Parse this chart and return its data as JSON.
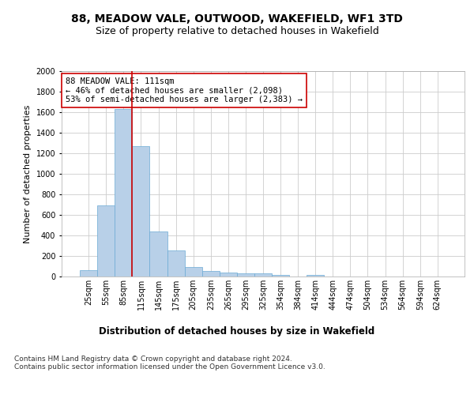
{
  "title": "88, MEADOW VALE, OUTWOOD, WAKEFIELD, WF1 3TD",
  "subtitle": "Size of property relative to detached houses in Wakefield",
  "xlabel": "Distribution of detached houses by size in Wakefield",
  "ylabel": "Number of detached properties",
  "categories": [
    "25sqm",
    "55sqm",
    "85sqm",
    "115sqm",
    "145sqm",
    "175sqm",
    "205sqm",
    "235sqm",
    "265sqm",
    "295sqm",
    "325sqm",
    "354sqm",
    "384sqm",
    "414sqm",
    "444sqm",
    "474sqm",
    "504sqm",
    "534sqm",
    "564sqm",
    "594sqm",
    "624sqm"
  ],
  "values": [
    65,
    695,
    1630,
    1270,
    435,
    255,
    90,
    55,
    40,
    28,
    28,
    15,
    0,
    18,
    0,
    0,
    0,
    0,
    0,
    0,
    0
  ],
  "bar_color": "#b8d0e8",
  "bar_edge_color": "#6aaad4",
  "vline_color": "#cc0000",
  "annotation_text": "88 MEADOW VALE: 111sqm\n← 46% of detached houses are smaller (2,098)\n53% of semi-detached houses are larger (2,383) →",
  "annotation_box_color": "#ffffff",
  "annotation_box_edge_color": "#cc0000",
  "ylim": [
    0,
    2000
  ],
  "yticks": [
    0,
    200,
    400,
    600,
    800,
    1000,
    1200,
    1400,
    1600,
    1800,
    2000
  ],
  "bg_color": "#ffffff",
  "grid_color": "#cccccc",
  "footnote": "Contains HM Land Registry data © Crown copyright and database right 2024.\nContains public sector information licensed under the Open Government Licence v3.0.",
  "title_fontsize": 10,
  "subtitle_fontsize": 9,
  "xlabel_fontsize": 8.5,
  "ylabel_fontsize": 8,
  "tick_fontsize": 7,
  "annot_fontsize": 7.5,
  "footnote_fontsize": 6.5
}
